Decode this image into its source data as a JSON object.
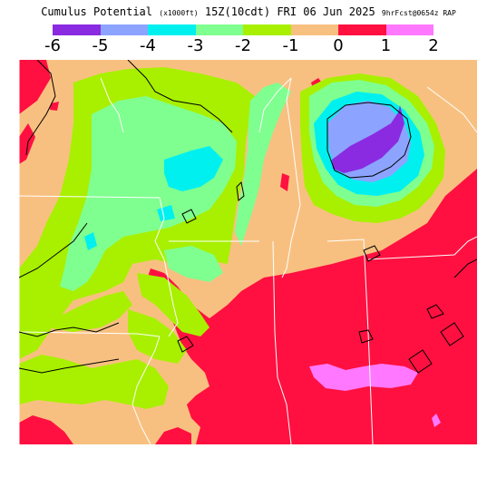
{
  "header": {
    "title": "Cumulus Potential",
    "units": "(x1000ft)",
    "valid": "15Z(10cdt)  FRI 06 Jun 2025",
    "forecast": "9hrFcst@0654z RAP"
  },
  "legend": {
    "colors": [
      "#8a2be2",
      "#8ca4ff",
      "#00f0f0",
      "#7fff8f",
      "#a8f000",
      "#f8c080",
      "#ff1040",
      "#ff78ff"
    ],
    "ticks": [
      "-6",
      "-5",
      "-4",
      "-3",
      "-2",
      "-1",
      "0",
      "1",
      "2"
    ]
  },
  "map": {
    "colors": {
      "bin_m6": "#8a2be2",
      "bin_m5": "#8ca4ff",
      "bin_m4": "#00f0f0",
      "bin_m3": "#7fff8f",
      "bin_m2": "#a8f000",
      "bin_m1": "#f8c080",
      "bin_0": "#ff1040",
      "bin_1": "#ff78ff",
      "borders": "#ffffff",
      "contour": "#000000"
    }
  }
}
